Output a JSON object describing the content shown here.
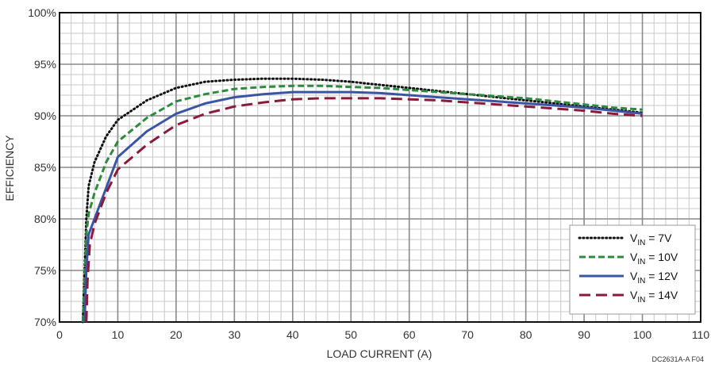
{
  "chart_data": {
    "type": "line",
    "xlabel": "LOAD CURRENT (A)",
    "ylabel": "EFFICIENCY",
    "xlim": [
      0,
      110
    ],
    "ylim": [
      70,
      100
    ],
    "x_major_ticks": [
      0,
      10,
      20,
      30,
      40,
      50,
      60,
      70,
      80,
      90,
      100,
      110
    ],
    "y_major_ticks": [
      70,
      75,
      80,
      85,
      90,
      95,
      100
    ],
    "x_tick_labels": [
      "0",
      "10",
      "20",
      "30",
      "40",
      "50",
      "60",
      "70",
      "80",
      "90",
      "100",
      "110"
    ],
    "y_tick_labels": [
      "70%",
      "75%",
      "80%",
      "85%",
      "90%",
      "95%",
      "100%"
    ],
    "grid": true,
    "legend_position": "bottom-right",
    "footnote": "DC2631A-A F04",
    "series": [
      {
        "name": "VIN = 7V",
        "label_main": "V",
        "label_sub": "IN",
        "label_rest": " = 7V",
        "color": "#111111",
        "style": "dotted",
        "x": [
          4,
          4.3,
          4.6,
          5,
          6,
          8,
          10,
          15,
          20,
          25,
          30,
          35,
          40,
          45,
          50,
          55,
          60,
          65,
          70,
          75,
          80,
          85,
          90,
          95,
          100
        ],
        "y": [
          70,
          75,
          80,
          83.2,
          85.5,
          88,
          89.6,
          91.5,
          92.7,
          93.3,
          93.5,
          93.6,
          93.6,
          93.5,
          93.3,
          93.0,
          92.7,
          92.4,
          92.1,
          91.8,
          91.5,
          91.2,
          90.9,
          90.6,
          90.3
        ]
      },
      {
        "name": "VIN = 10V",
        "label_main": "V",
        "label_sub": "IN",
        "label_rest": " = 10V",
        "color": "#2e8b3e",
        "style": "dashed",
        "x": [
          4,
          4.3,
          4.6,
          5,
          6,
          8,
          10,
          15,
          20,
          25,
          30,
          35,
          40,
          45,
          50,
          55,
          60,
          65,
          70,
          75,
          80,
          85,
          90,
          95,
          100
        ],
        "y": [
          70,
          74,
          78.5,
          80.5,
          82.5,
          85.5,
          87.5,
          89.8,
          91.4,
          92.1,
          92.6,
          92.8,
          92.9,
          92.9,
          92.8,
          92.7,
          92.5,
          92.3,
          92.1,
          91.9,
          91.7,
          91.4,
          91.1,
          90.8,
          90.6
        ]
      },
      {
        "name": "VIN = 12V",
        "label_main": "V",
        "label_sub": "IN",
        "label_rest": " = 12V",
        "color": "#3a55a4",
        "style": "solid",
        "x": [
          4.3,
          4.6,
          5,
          6,
          8,
          10,
          15,
          20,
          25,
          30,
          35,
          40,
          45,
          50,
          55,
          60,
          65,
          70,
          75,
          80,
          85,
          90,
          95,
          100
        ],
        "y": [
          70,
          75,
          78.5,
          80,
          83,
          86,
          88.5,
          90.2,
          91.2,
          91.8,
          92.1,
          92.3,
          92.3,
          92.3,
          92.2,
          92.0,
          91.8,
          91.6,
          91.4,
          91.2,
          91.0,
          90.8,
          90.5,
          90.2
        ]
      },
      {
        "name": "VIN = 14V",
        "label_main": "V",
        "label_sub": "IN",
        "label_rest": " = 14V",
        "color": "#8b1a3a",
        "style": "longdash",
        "x": [
          4.6,
          4.8,
          5.2,
          6,
          8,
          10,
          15,
          20,
          25,
          30,
          35,
          40,
          45,
          50,
          55,
          60,
          65,
          70,
          75,
          80,
          85,
          90,
          95,
          100
        ],
        "y": [
          70,
          74,
          77.5,
          79.5,
          82.5,
          84.8,
          87.2,
          89.1,
          90.2,
          90.9,
          91.3,
          91.6,
          91.7,
          91.7,
          91.7,
          91.6,
          91.5,
          91.3,
          91.1,
          90.9,
          90.7,
          90.5,
          90.2,
          90.0
        ]
      }
    ]
  }
}
